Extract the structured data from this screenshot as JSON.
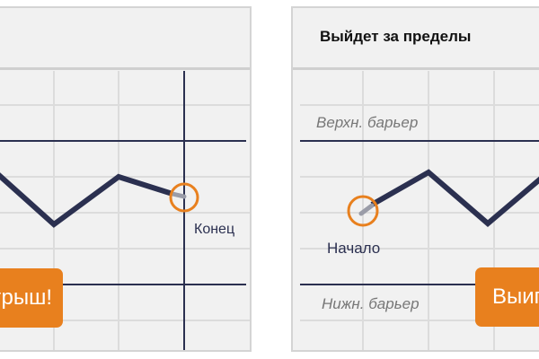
{
  "left_panel": {
    "title": "",
    "end_label": "Конец",
    "button_label": "Выигрыш!"
  },
  "right_panel": {
    "title": "Выйдет за пределы",
    "upper_barrier_label": "Верхн. барьер",
    "lower_barrier_label": "Нижн. барьер",
    "start_label": "Начало",
    "button_label": "Выигрыш!"
  },
  "colors": {
    "line": "#2b3050",
    "accent": "#e8801e",
    "grid": "#dcdcdc",
    "background": "#f1f1f1"
  }
}
